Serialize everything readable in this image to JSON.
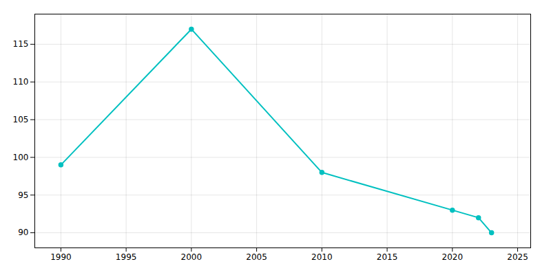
{
  "chart_data": {
    "type": "line",
    "x": [
      1990,
      2000,
      2010,
      2020,
      2022,
      2023
    ],
    "values": [
      99,
      117,
      98,
      93,
      92,
      90
    ],
    "color": "#00C0C0",
    "marker": "circle",
    "xlim": [
      1988,
      2026
    ],
    "ylim": [
      88,
      119
    ],
    "xticks": [
      1990,
      1995,
      2000,
      2005,
      2010,
      2015,
      2020,
      2025
    ],
    "yticks": [
      90,
      95,
      100,
      105,
      110,
      115
    ],
    "grid": true
  }
}
